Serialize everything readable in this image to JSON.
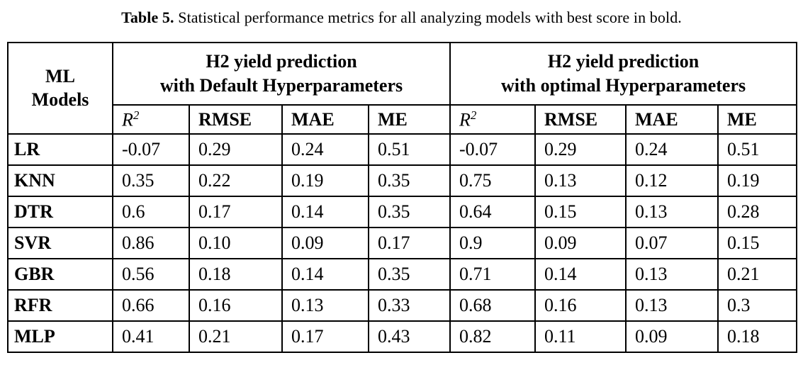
{
  "caption": {
    "label": "Table 5.",
    "text": " Statistical performance metrics for all analyzing models with best score in bold."
  },
  "table": {
    "corner": {
      "line1": "ML",
      "line2": "Models"
    },
    "groups": [
      {
        "line1": "H2 yield prediction",
        "line2": "with Default Hyperparameters"
      },
      {
        "line1": "H2 yield prediction",
        "line2": "with optimal Hyperparameters"
      }
    ],
    "metrics": [
      {
        "display": "R",
        "sup": "2",
        "italic": true
      },
      {
        "display": "RMSE"
      },
      {
        "display": "MAE"
      },
      {
        "display": "ME"
      }
    ],
    "rows": [
      {
        "model": "LR",
        "default": [
          "-0.07",
          "0.29",
          "0.24",
          "0.51"
        ],
        "optimal": [
          "-0.07",
          "0.29",
          "0.24",
          "0.51"
        ]
      },
      {
        "model": "KNN",
        "default": [
          "0.35",
          "0.22",
          "0.19",
          "0.35"
        ],
        "optimal": [
          "0.75",
          "0.13",
          "0.12",
          "0.19"
        ]
      },
      {
        "model": "DTR",
        "default": [
          "0.6",
          "0.17",
          "0.14",
          "0.35"
        ],
        "optimal": [
          "0.64",
          "0.15",
          "0.13",
          "0.28"
        ]
      },
      {
        "model": "SVR",
        "default": [
          "0.86",
          "0.10",
          "0.09",
          "0.17"
        ],
        "optimal": [
          "0.9",
          "0.09",
          "0.07",
          "0.15"
        ]
      },
      {
        "model": "GBR",
        "default": [
          "0.56",
          "0.18",
          "0.14",
          "0.35"
        ],
        "optimal": [
          "0.71",
          "0.14",
          "0.13",
          "0.21"
        ]
      },
      {
        "model": "RFR",
        "default": [
          "0.66",
          "0.16",
          "0.13",
          "0.33"
        ],
        "optimal": [
          "0.68",
          "0.16",
          "0.13",
          "0.3"
        ]
      },
      {
        "model": "MLP",
        "default": [
          "0.41",
          "0.21",
          "0.17",
          "0.43"
        ],
        "optimal": [
          "0.82",
          "0.11",
          "0.09",
          "0.18"
        ]
      }
    ]
  }
}
